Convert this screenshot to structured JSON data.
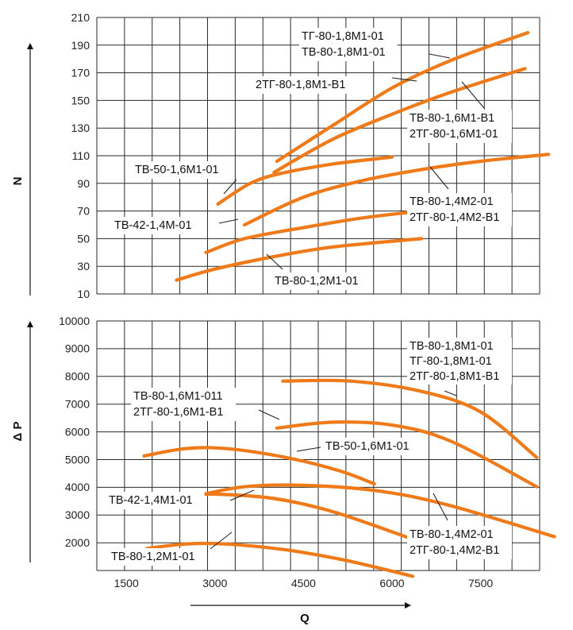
{
  "chart_data": [
    {
      "type": "line",
      "panel": "power",
      "ylabel": "N",
      "xlabel": "Q",
      "ylim": [
        10,
        210
      ],
      "yticks": [
        "10",
        "30",
        "50",
        "70",
        "90",
        "110",
        "130",
        "150",
        "170",
        "190",
        "210"
      ],
      "xlim": [
        1000,
        8500
      ],
      "xticks": [
        "1500",
        "3000",
        "4500",
        "6000",
        "7500"
      ],
      "grid": true,
      "curve_color": "#ee7a1a",
      "series": [
        {
          "points": [
            [
              4050,
              106
            ],
            [
              5000,
              132
            ],
            [
              6000,
              159
            ],
            [
              7000,
              179
            ],
            [
              8300,
              199
            ]
          ]
        },
        {
          "points": [
            [
              4000,
              98
            ],
            [
              5000,
              122
            ],
            [
              6000,
              140
            ],
            [
              7000,
              156
            ],
            [
              8250,
              173
            ]
          ]
        },
        {
          "points": [
            [
              3050,
              75
            ],
            [
              3600,
              90
            ],
            [
              4100,
              97
            ],
            [
              5000,
              104
            ],
            [
              6000,
              109
            ]
          ]
        },
        {
          "points": [
            [
              3500,
              60
            ],
            [
              4500,
              80
            ],
            [
              5500,
              92
            ],
            [
              6500,
              100
            ],
            [
              7500,
              106
            ],
            [
              8650,
              111
            ]
          ]
        },
        {
          "points": [
            [
              2850,
              40
            ],
            [
              3500,
              50
            ],
            [
              4500,
              58
            ],
            [
              5500,
              65
            ],
            [
              6500,
              70
            ]
          ]
        },
        {
          "points": [
            [
              2350,
              20
            ],
            [
              3000,
              28
            ],
            [
              4000,
              37
            ],
            [
              5000,
              44
            ],
            [
              6500,
              50
            ]
          ]
        }
      ],
      "labels": [
        {
          "lines": [
            "ТГ-80-1,8М1-01",
            "ТВ-80-1,8М1-01"
          ]
        },
        {
          "lines": [
            "2ТГ-80-1,8М1-В1"
          ]
        },
        {
          "lines": [
            "ТВ-80-1,6М1-В1",
            "2ТГ-80-1,6М1-01"
          ]
        },
        {
          "lines": [
            "ТВ-50-1,6М1-01"
          ]
        },
        {
          "lines": [
            "ТВ-80-1,4М2-01",
            "2ТГ-80-1,4М2-В1"
          ]
        },
        {
          "lines": [
            "ТВ-42-1,4М-01"
          ]
        },
        {
          "lines": [
            "ТВ-80-1,2М1-01"
          ]
        }
      ]
    },
    {
      "type": "line",
      "panel": "pressure",
      "ylabel": "Δ P",
      "xlabel": "Q",
      "ylim": [
        1500,
        10000
      ],
      "yticks": [
        "2000",
        "3000",
        "4000",
        "5000",
        "6000",
        "7000",
        "8000",
        "9000",
        "10000"
      ],
      "xlim": [
        1000,
        8500
      ],
      "xticks": [
        "1500",
        "3000",
        "4500",
        "6000",
        "7500"
      ],
      "grid": true,
      "curve_color": "#ee7a1a",
      "series": [
        {
          "points": [
            [
              4150,
              7950
            ],
            [
              5300,
              7950
            ],
            [
              6500,
              7600
            ],
            [
              7500,
              6900
            ],
            [
              8450,
              5350
            ]
          ]
        },
        {
          "points": [
            [
              4050,
              6350
            ],
            [
              5000,
              6550
            ],
            [
              6000,
              6450
            ],
            [
              7000,
              5900
            ],
            [
              8450,
              4350
            ]
          ]
        },
        {
          "points": [
            [
              1800,
              5400
            ],
            [
              2500,
              5650
            ],
            [
              3200,
              5650
            ],
            [
              4200,
              5350
            ],
            [
              5100,
              4900
            ],
            [
              5700,
              4450
            ]
          ]
        },
        {
          "points": [
            [
              2700,
              4050
            ],
            [
              3500,
              4350
            ],
            [
              4500,
              4400
            ],
            [
              5800,
              4200
            ],
            [
              7000,
              3700
            ],
            [
              8750,
              2650
            ]
          ]
        },
        {
          "points": [
            [
              2450,
              4050
            ],
            [
              3000,
              4100
            ],
            [
              4000,
              3950
            ],
            [
              5000,
              3500
            ],
            [
              6300,
              2600
            ]
          ]
        },
        {
          "points": [
            [
              1850,
              2250
            ],
            [
              2500,
              2400
            ],
            [
              3200,
              2400
            ],
            [
              4200,
              2200
            ],
            [
              5200,
              1850
            ],
            [
              6350,
              1300
            ]
          ]
        }
      ],
      "labels": [
        {
          "lines": [
            "ТВ-80-1,8М1-01",
            "ТГ-80-1,8М1-01",
            "2ТГ-80-1,8М1-В1"
          ]
        },
        {
          "lines": [
            "ТВ-80-1,6М1-011",
            "2ТГ-80-1,6М1-В1"
          ]
        },
        {
          "lines": [
            "ТВ-50-1,6М1-01"
          ]
        },
        {
          "lines": [
            "ТВ-42-1,4М1-01"
          ]
        },
        {
          "lines": [
            "ТВ-80-1,4М2-01",
            "2ТГ-80-1,4М2-В1"
          ]
        },
        {
          "lines": [
            "ТВ-80-1,2М1-01"
          ]
        }
      ]
    }
  ]
}
